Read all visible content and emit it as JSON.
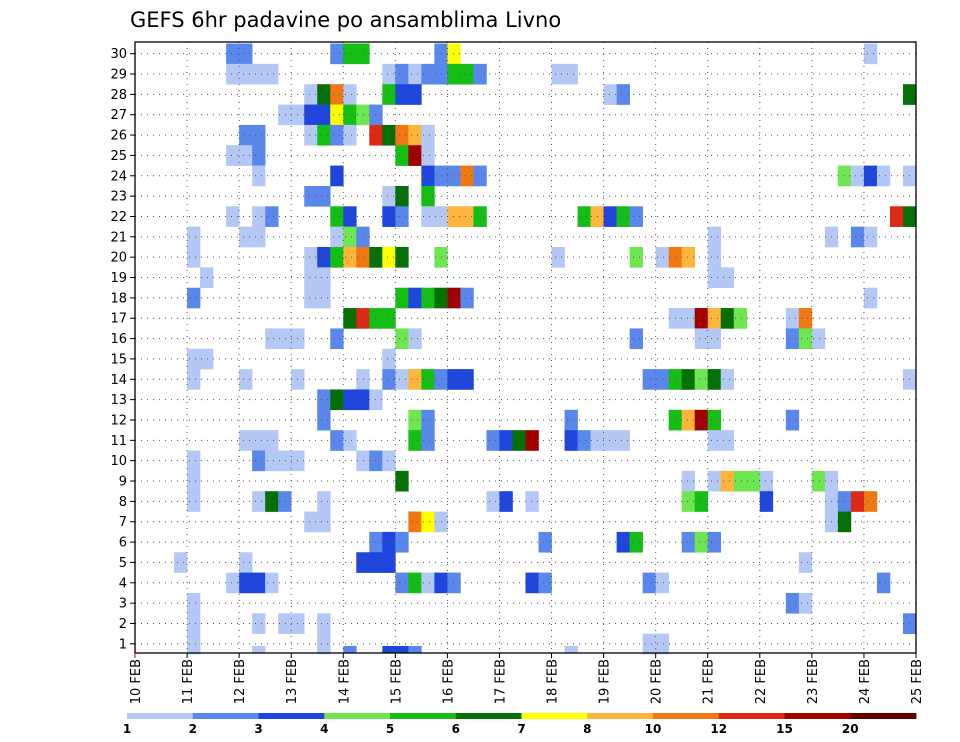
{
  "chart_data": {
    "type": "heatmap",
    "title": "GEFS 6hr padavine po ansamblima Livno",
    "xlabel": "",
    "ylabel": "",
    "x_ticks": [
      "10 FEB",
      "11 FEB",
      "12 FEB",
      "13 FEB",
      "14 FEB",
      "15 FEB",
      "16 FEB",
      "17 FEB",
      "18 FEB",
      "19 FEB",
      "20 FEB",
      "21 FEB",
      "22 FEB",
      "23 FEB",
      "24 FEB",
      "25 FEB"
    ],
    "y_ticks": [
      1,
      2,
      3,
      4,
      5,
      6,
      7,
      8,
      9,
      10,
      11,
      12,
      13,
      14,
      15,
      16,
      17,
      18,
      19,
      20,
      21,
      22,
      23,
      24,
      25,
      26,
      27,
      28,
      29,
      30
    ],
    "grid": true,
    "colorbar": {
      "labels": [
        "1",
        "2",
        "3",
        "4",
        "5",
        "6",
        "7",
        "8",
        "10",
        "12",
        "15",
        "20"
      ],
      "colors": [
        "#b4c8f5",
        "#5a87eb",
        "#1e46dc",
        "#6ee650",
        "#14be14",
        "#057005",
        "#ffff00",
        "#ffb43c",
        "#f07814",
        "#dc2814",
        "#a00000",
        "#640000"
      ]
    },
    "x_unit": "6-hour step (0 = 10 FEB 00Z)",
    "cells": [
      [
        7,
        30,
        2
      ],
      [
        8,
        30,
        2
      ],
      [
        15,
        30,
        2
      ],
      [
        16,
        30,
        5
      ],
      [
        17,
        30,
        5
      ],
      [
        23,
        30,
        2
      ],
      [
        24,
        30,
        7
      ],
      [
        56,
        30,
        1
      ],
      [
        7,
        29,
        1
      ],
      [
        8,
        29,
        1
      ],
      [
        9,
        29,
        1
      ],
      [
        10,
        29,
        1
      ],
      [
        19,
        29,
        1
      ],
      [
        20,
        29,
        2
      ],
      [
        21,
        29,
        1
      ],
      [
        22,
        29,
        2
      ],
      [
        23,
        29,
        2
      ],
      [
        24,
        29,
        5
      ],
      [
        25,
        29,
        5
      ],
      [
        26,
        29,
        2
      ],
      [
        32,
        29,
        1
      ],
      [
        33,
        29,
        1
      ],
      [
        13,
        28,
        1
      ],
      [
        14,
        28,
        6
      ],
      [
        15,
        28,
        9
      ],
      [
        16,
        28,
        1
      ],
      [
        19,
        28,
        5
      ],
      [
        20,
        28,
        3
      ],
      [
        21,
        28,
        3
      ],
      [
        36,
        28,
        1
      ],
      [
        37,
        28,
        2
      ],
      [
        59,
        28,
        6
      ],
      [
        60,
        28,
        3
      ],
      [
        61,
        28,
        3
      ],
      [
        62,
        28,
        6
      ],
      [
        11,
        27,
        1
      ],
      [
        12,
        27,
        1
      ],
      [
        13,
        27,
        3
      ],
      [
        14,
        27,
        3
      ],
      [
        15,
        27,
        7
      ],
      [
        16,
        27,
        5
      ],
      [
        17,
        27,
        4
      ],
      [
        18,
        27,
        2
      ],
      [
        8,
        26,
        2
      ],
      [
        9,
        26,
        2
      ],
      [
        13,
        26,
        1
      ],
      [
        14,
        26,
        5
      ],
      [
        15,
        26,
        2
      ],
      [
        16,
        26,
        1
      ],
      [
        18,
        26,
        10
      ],
      [
        19,
        26,
        6
      ],
      [
        20,
        26,
        9
      ],
      [
        21,
        26,
        8
      ],
      [
        22,
        26,
        1
      ],
      [
        7,
        25,
        1
      ],
      [
        8,
        25,
        1
      ],
      [
        9,
        25,
        2
      ],
      [
        20,
        25,
        5
      ],
      [
        21,
        25,
        11
      ],
      [
        22,
        25,
        1
      ],
      [
        9,
        24,
        1
      ],
      [
        15,
        24,
        3
      ],
      [
        22,
        24,
        3
      ],
      [
        23,
        24,
        2
      ],
      [
        24,
        24,
        2
      ],
      [
        25,
        24,
        9
      ],
      [
        26,
        24,
        2
      ],
      [
        54,
        24,
        4
      ],
      [
        55,
        24,
        1
      ],
      [
        56,
        24,
        3
      ],
      [
        57,
        24,
        1
      ],
      [
        59,
        24,
        1
      ],
      [
        62,
        24,
        5
      ],
      [
        63,
        24,
        7
      ],
      [
        13,
        23,
        2
      ],
      [
        14,
        23,
        2
      ],
      [
        19,
        23,
        1
      ],
      [
        20,
        23,
        6
      ],
      [
        22,
        23,
        5
      ],
      [
        7,
        22,
        1
      ],
      [
        9,
        22,
        1
      ],
      [
        10,
        22,
        2
      ],
      [
        15,
        22,
        5
      ],
      [
        16,
        22,
        3
      ],
      [
        19,
        22,
        3
      ],
      [
        20,
        22,
        2
      ],
      [
        22,
        22,
        1
      ],
      [
        23,
        22,
        1
      ],
      [
        24,
        22,
        8
      ],
      [
        25,
        22,
        8
      ],
      [
        26,
        22,
        5
      ],
      [
        34,
        22,
        5
      ],
      [
        35,
        22,
        8
      ],
      [
        36,
        22,
        3
      ],
      [
        37,
        22,
        5
      ],
      [
        38,
        22,
        2
      ],
      [
        58,
        22,
        10
      ],
      [
        59,
        22,
        6
      ],
      [
        61,
        22,
        1
      ],
      [
        62,
        22,
        5
      ],
      [
        63,
        22,
        9
      ],
      [
        4,
        21,
        1
      ],
      [
        8,
        21,
        1
      ],
      [
        9,
        21,
        1
      ],
      [
        15,
        21,
        1
      ],
      [
        16,
        21,
        4
      ],
      [
        17,
        21,
        2
      ],
      [
        44,
        21,
        1
      ],
      [
        53,
        21,
        1
      ],
      [
        55,
        21,
        2
      ],
      [
        56,
        21,
        1
      ],
      [
        63,
        21,
        1
      ],
      [
        4,
        20,
        1
      ],
      [
        13,
        20,
        1
      ],
      [
        14,
        20,
        3
      ],
      [
        15,
        20,
        5
      ],
      [
        16,
        20,
        8
      ],
      [
        17,
        20,
        9
      ],
      [
        18,
        20,
        6
      ],
      [
        19,
        20,
        7
      ],
      [
        20,
        20,
        6
      ],
      [
        23,
        20,
        4
      ],
      [
        32,
        20,
        1
      ],
      [
        38,
        20,
        4
      ],
      [
        40,
        20,
        1
      ],
      [
        41,
        20,
        9
      ],
      [
        42,
        20,
        8
      ],
      [
        44,
        20,
        1
      ],
      [
        5,
        19,
        1
      ],
      [
        13,
        19,
        1
      ],
      [
        14,
        19,
        1
      ],
      [
        44,
        19,
        1
      ],
      [
        45,
        19,
        1
      ],
      [
        4,
        18,
        2
      ],
      [
        13,
        18,
        1
      ],
      [
        14,
        18,
        1
      ],
      [
        20,
        18,
        5
      ],
      [
        21,
        18,
        3
      ],
      [
        22,
        18,
        5
      ],
      [
        23,
        18,
        6
      ],
      [
        24,
        18,
        11
      ],
      [
        25,
        18,
        2
      ],
      [
        56,
        18,
        1
      ],
      [
        16,
        17,
        6
      ],
      [
        17,
        17,
        10
      ],
      [
        18,
        17,
        5
      ],
      [
        19,
        17,
        5
      ],
      [
        41,
        17,
        1
      ],
      [
        42,
        17,
        1
      ],
      [
        43,
        17,
        11
      ],
      [
        44,
        17,
        8
      ],
      [
        45,
        17,
        6
      ],
      [
        46,
        17,
        4
      ],
      [
        50,
        17,
        1
      ],
      [
        51,
        17,
        9
      ],
      [
        10,
        16,
        1
      ],
      [
        11,
        16,
        1
      ],
      [
        12,
        16,
        1
      ],
      [
        15,
        16,
        2
      ],
      [
        20,
        16,
        4
      ],
      [
        21,
        16,
        1
      ],
      [
        38,
        16,
        2
      ],
      [
        43,
        16,
        1
      ],
      [
        44,
        16,
        1
      ],
      [
        50,
        16,
        2
      ],
      [
        51,
        16,
        4
      ],
      [
        52,
        16,
        1
      ],
      [
        4,
        15,
        1
      ],
      [
        5,
        15,
        1
      ],
      [
        19,
        15,
        1
      ],
      [
        4,
        14,
        1
      ],
      [
        8,
        14,
        1
      ],
      [
        12,
        14,
        1
      ],
      [
        17,
        14,
        1
      ],
      [
        19,
        14,
        2
      ],
      [
        20,
        14,
        1
      ],
      [
        21,
        14,
        8
      ],
      [
        22,
        14,
        5
      ],
      [
        23,
        14,
        2
      ],
      [
        24,
        14,
        3
      ],
      [
        25,
        14,
        3
      ],
      [
        39,
        14,
        2
      ],
      [
        40,
        14,
        2
      ],
      [
        41,
        14,
        5
      ],
      [
        42,
        14,
        6
      ],
      [
        43,
        14,
        4
      ],
      [
        44,
        14,
        6
      ],
      [
        45,
        14,
        1
      ],
      [
        59,
        14,
        1
      ],
      [
        60,
        14,
        8
      ],
      [
        61,
        14,
        6
      ],
      [
        62,
        14,
        1
      ],
      [
        63,
        14,
        1
      ],
      [
        14,
        13,
        2
      ],
      [
        15,
        13,
        6
      ],
      [
        16,
        13,
        3
      ],
      [
        17,
        13,
        3
      ],
      [
        18,
        13,
        1
      ],
      [
        14,
        12,
        2
      ],
      [
        21,
        12,
        4
      ],
      [
        22,
        12,
        2
      ],
      [
        33,
        12,
        2
      ],
      [
        41,
        12,
        5
      ],
      [
        42,
        12,
        8
      ],
      [
        43,
        12,
        11
      ],
      [
        44,
        12,
        5
      ],
      [
        50,
        12,
        2
      ],
      [
        8,
        11,
        1
      ],
      [
        9,
        11,
        1
      ],
      [
        10,
        11,
        1
      ],
      [
        15,
        11,
        2
      ],
      [
        16,
        11,
        1
      ],
      [
        21,
        11,
        5
      ],
      [
        22,
        11,
        2
      ],
      [
        27,
        11,
        2
      ],
      [
        28,
        11,
        3
      ],
      [
        29,
        11,
        6
      ],
      [
        30,
        11,
        11
      ],
      [
        33,
        11,
        3
      ],
      [
        34,
        11,
        2
      ],
      [
        35,
        11,
        1
      ],
      [
        36,
        11,
        1
      ],
      [
        37,
        11,
        1
      ],
      [
        44,
        11,
        1
      ],
      [
        45,
        11,
        1
      ],
      [
        4,
        10,
        1
      ],
      [
        9,
        10,
        2
      ],
      [
        10,
        10,
        1
      ],
      [
        11,
        10,
        1
      ],
      [
        12,
        10,
        1
      ],
      [
        17,
        10,
        1
      ],
      [
        18,
        10,
        2
      ],
      [
        19,
        10,
        1
      ],
      [
        4,
        9,
        1
      ],
      [
        20,
        9,
        6
      ],
      [
        42,
        9,
        1
      ],
      [
        44,
        9,
        1
      ],
      [
        45,
        9,
        8
      ],
      [
        46,
        9,
        4
      ],
      [
        47,
        9,
        4
      ],
      [
        48,
        9,
        1
      ],
      [
        52,
        9,
        4
      ],
      [
        53,
        9,
        1
      ],
      [
        4,
        8,
        1
      ],
      [
        9,
        8,
        1
      ],
      [
        10,
        8,
        6
      ],
      [
        11,
        8,
        2
      ],
      [
        14,
        8,
        1
      ],
      [
        27,
        8,
        1
      ],
      [
        28,
        8,
        3
      ],
      [
        30,
        8,
        1
      ],
      [
        42,
        8,
        4
      ],
      [
        43,
        8,
        5
      ],
      [
        48,
        8,
        3
      ],
      [
        53,
        8,
        1
      ],
      [
        54,
        8,
        2
      ],
      [
        55,
        8,
        10
      ],
      [
        56,
        8,
        9
      ],
      [
        13,
        7,
        1
      ],
      [
        14,
        7,
        1
      ],
      [
        21,
        7,
        9
      ],
      [
        22,
        7,
        7
      ],
      [
        23,
        7,
        1
      ],
      [
        53,
        7,
        1
      ],
      [
        54,
        7,
        6
      ],
      [
        18,
        6,
        2
      ],
      [
        19,
        6,
        3
      ],
      [
        20,
        6,
        2
      ],
      [
        31,
        6,
        2
      ],
      [
        37,
        6,
        3
      ],
      [
        38,
        6,
        5
      ],
      [
        42,
        6,
        2
      ],
      [
        43,
        6,
        4
      ],
      [
        44,
        6,
        2
      ],
      [
        3,
        5,
        1
      ],
      [
        8,
        5,
        1
      ],
      [
        17,
        5,
        3
      ],
      [
        18,
        5,
        3
      ],
      [
        19,
        5,
        3
      ],
      [
        51,
        5,
        1
      ],
      [
        7,
        4,
        1
      ],
      [
        8,
        4,
        3
      ],
      [
        9,
        4,
        3
      ],
      [
        10,
        4,
        1
      ],
      [
        20,
        4,
        2
      ],
      [
        21,
        4,
        5
      ],
      [
        22,
        4,
        1
      ],
      [
        23,
        4,
        3
      ],
      [
        24,
        4,
        2
      ],
      [
        30,
        4,
        3
      ],
      [
        31,
        4,
        2
      ],
      [
        39,
        4,
        2
      ],
      [
        40,
        4,
        1
      ],
      [
        57,
        4,
        2
      ],
      [
        4,
        3,
        1
      ],
      [
        50,
        3,
        2
      ],
      [
        51,
        3,
        1
      ],
      [
        4,
        2,
        1
      ],
      [
        9,
        2,
        1
      ],
      [
        11,
        2,
        1
      ],
      [
        12,
        2,
        1
      ],
      [
        14,
        2,
        1
      ],
      [
        59,
        2,
        2
      ],
      [
        60,
        2,
        12
      ],
      [
        4,
        1,
        1
      ],
      [
        14,
        1,
        1
      ],
      [
        39,
        1,
        1
      ],
      [
        40,
        1,
        1
      ],
      [
        4,
        0,
        1
      ],
      [
        9,
        0,
        1
      ],
      [
        14,
        0,
        1
      ],
      [
        16,
        0,
        2
      ],
      [
        19,
        0,
        3
      ],
      [
        20,
        0,
        3
      ],
      [
        21,
        0,
        2
      ],
      [
        33,
        0,
        1
      ]
    ]
  }
}
